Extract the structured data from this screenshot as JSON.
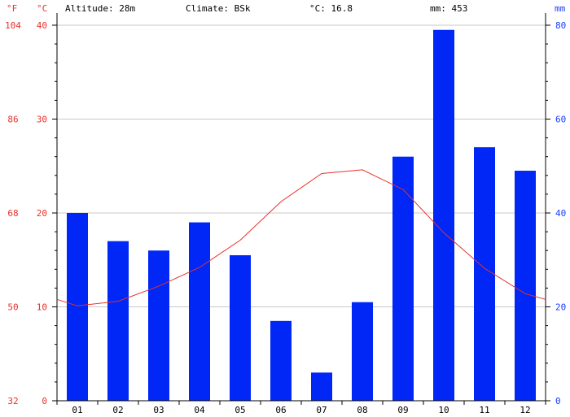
{
  "header": {
    "altitude": "Altitude: 28m",
    "climate": "Climate: BSk",
    "temp": "°C: 16.8",
    "precip": "mm: 453"
  },
  "colors": {
    "bar": "#0027f5",
    "temp_line": "#e8302a",
    "left_axis_text": "#e8302a",
    "right_axis_text": "#1a3cff",
    "grid": "#c8c8c8"
  },
  "chart_data": {
    "type": "bar",
    "categories": [
      "01",
      "02",
      "03",
      "04",
      "05",
      "06",
      "07",
      "08",
      "09",
      "10",
      "11",
      "12"
    ],
    "series": [
      {
        "name": "mm",
        "kind": "bar",
        "axis": "right",
        "values": [
          40,
          34,
          32,
          38,
          31,
          17,
          6,
          21,
          52,
          79,
          54,
          49
        ]
      },
      {
        "name": "°C",
        "kind": "line",
        "axis": "left",
        "values": [
          10.1,
          10.6,
          12.2,
          14.2,
          17.1,
          21.2,
          24.2,
          24.6,
          22.5,
          17.9,
          14.1,
          11.4
        ]
      }
    ],
    "left_axis": {
      "unit_c": "°C",
      "unit_f": "°F",
      "ylim": [
        0,
        40
      ],
      "ticks_c": [
        "0",
        "10",
        "20",
        "30",
        "40"
      ],
      "ticks_f": [
        "32",
        "50",
        "68",
        "86",
        "104"
      ]
    },
    "right_axis": {
      "unit": "mm",
      "ylim": [
        0,
        80
      ],
      "ticks": [
        "0",
        "20",
        "40",
        "60",
        "80"
      ]
    },
    "temp_line_edges": {
      "start": 10.8,
      "end": 10.8
    },
    "grid": true
  }
}
